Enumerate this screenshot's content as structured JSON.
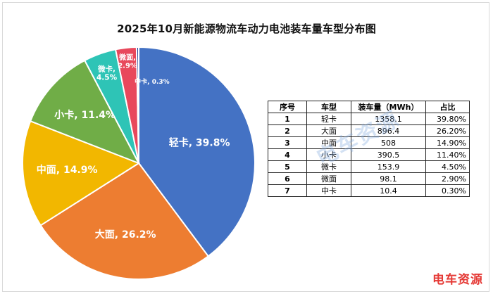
{
  "chart_data": {
    "type": "pie",
    "title": "2025年10月新能源物流车动力电池装车量车型分布图",
    "slices": [
      {
        "label": "轻卡",
        "value": 39.8,
        "display": "轻卡, 39.8%",
        "color": "#4472C4"
      },
      {
        "label": "大面",
        "value": 26.2,
        "display": "大面, 26.2%",
        "color": "#ED7D31"
      },
      {
        "label": "中面",
        "value": 14.9,
        "display": "中面, 14.9%",
        "color": "#F2B700"
      },
      {
        "label": "小卡",
        "value": 11.4,
        "display": "小卡, 11.4%",
        "color": "#70AD47"
      },
      {
        "label": "微卡",
        "value": 4.5,
        "display_lines": [
          "微卡,",
          "4.5%"
        ],
        "color": "#2EC4B6"
      },
      {
        "label": "微面",
        "value": 2.9,
        "display_lines": [
          "微面,",
          "2.9%"
        ],
        "color": "#E8485C"
      },
      {
        "label": "中卡",
        "value": 0.3,
        "display": "中卡, 0.3%",
        "color": "#1F3A93"
      }
    ]
  },
  "table": {
    "headers": [
      "序号",
      "车型",
      "装车量（MWh）",
      "占比"
    ],
    "rows": [
      [
        "1",
        "轻卡",
        "1358.1",
        "39.80%"
      ],
      [
        "2",
        "大面",
        "896.4",
        "26.20%"
      ],
      [
        "3",
        "中面",
        "508",
        "14.90%"
      ],
      [
        "4",
        "小卡",
        "390.5",
        "11.40%"
      ],
      [
        "5",
        "微卡",
        "153.9",
        "4.50%"
      ],
      [
        "6",
        "微面",
        "98.1",
        "2.90%"
      ],
      [
        "7",
        "中卡",
        "10.4",
        "0.30%"
      ]
    ]
  },
  "watermark": {
    "center_text": "电车资源",
    "corner_text": "电车资源"
  }
}
